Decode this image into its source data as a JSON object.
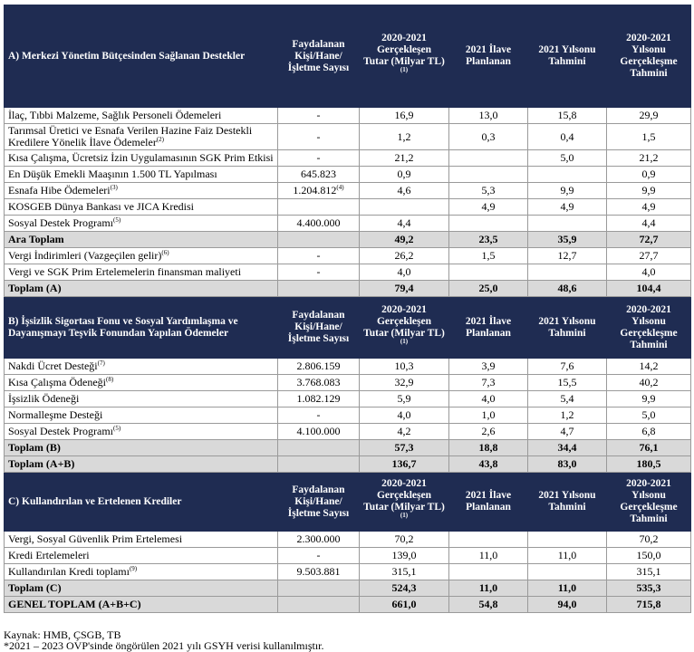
{
  "sections": [
    {
      "header": {
        "title": "A) Merkezi Yönetim Bütçesinden Sağlanan Destekler",
        "columns": [
          "Faydalanan Kişi/Hane/ İşletme Sayısı",
          "2020-2021 Gerçekleşen Tutar (Milyar TL)",
          "2021 İlave Planlanan",
          "2021 Yılsonu Tahmini",
          "2020-2021 Yılsonu Gerçekleşme Tahmini"
        ],
        "column_note": "(1)"
      },
      "rows": [
        {
          "label": "İlaç, Tıbbi Malzeme, Sağlık Personeli Ödemeleri",
          "cells": [
            "-",
            "16,9",
            "13,0",
            "15,8",
            "29,9"
          ]
        },
        {
          "label": "Tarımsal Üretici ve Esnafa Verilen Hazine Faiz Destekli Kredilere Yönelik İlave Ödemeler",
          "label_note": "(2)",
          "cells": [
            "-",
            "1,2",
            "0,3",
            "0,4",
            "1,5"
          ]
        },
        {
          "label": "Kısa Çalışma, Ücretsiz İzin Uygulamasının SGK Prim Etkisi",
          "cells": [
            "-",
            "21,2",
            null,
            "5,0",
            "21,2"
          ]
        },
        {
          "label": "En Düşük Emekli Maaşının 1.500 TL Yapılması",
          "cells": [
            "645.823",
            "0,9",
            null,
            null,
            "0,9"
          ]
        },
        {
          "label": "Esnafa Hibe Ödemeleri",
          "label_note": "(3)",
          "cells": [
            "1.204.812",
            "4,6",
            "5,3",
            "9,9",
            "9,9"
          ],
          "count_note": "(4)"
        },
        {
          "label": "KOSGEB Dünya Bankası ve JICA Kredisi",
          "cells": [
            null,
            null,
            "4,9",
            "4,9",
            "4,9"
          ]
        },
        {
          "label": "Sosyal Destek Programı",
          "label_note": "(5)",
          "cells": [
            "4.400.000",
            "4,4",
            null,
            null,
            "4,4"
          ]
        },
        {
          "label": "Ara Toplam",
          "bold": true,
          "cells": [
            null,
            "49,2",
            "23,5",
            "35,9",
            "72,7"
          ]
        },
        {
          "label": "Vergi İndirimleri (Vazgeçilen gelir)",
          "label_note": "(6)",
          "cells": [
            "-",
            "26,2",
            "1,5",
            "12,7",
            "27,7"
          ]
        },
        {
          "label": "Vergi ve SGK Prim Ertelemelerin finansman maliyeti",
          "cells": [
            "-",
            "4,0",
            null,
            null,
            "4,0"
          ]
        },
        {
          "label": "Toplam (A)",
          "bold": true,
          "cells": [
            null,
            "79,4",
            "25,0",
            "48,6",
            "104,4"
          ]
        }
      ]
    },
    {
      "header": {
        "title": "B) İşsizlik Sigortası Fonu ve Sosyal Yardımlaşma ve Dayanışmayı Teşvik Fonundan Yapılan Ödemeler",
        "columns": [
          "Faydalanan Kişi/Hane/ İşletme Sayısı",
          "2020-2021 Gerçekleşen Tutar (Milyar TL)",
          "2021 İlave Planlanan",
          "2021 Yılsonu Tahmini",
          "2020-2021 Yılsonu Gerçekleşme Tahmini"
        ],
        "column_note": "(1)"
      },
      "rows": [
        {
          "label": "Nakdi Ücret Desteği",
          "label_note": "(7)",
          "cells": [
            "2.806.159",
            "10,3",
            "3,9",
            "7,6",
            "14,2"
          ]
        },
        {
          "label": "Kısa Çalışma Ödeneği",
          "label_note": "(8)",
          "cells": [
            "3.768.083",
            "32,9",
            "7,3",
            "15,5",
            "40,2"
          ]
        },
        {
          "label": "İşsizlik Ödeneği",
          "cells": [
            "1.082.129",
            "5,9",
            "4,0",
            "5,4",
            "9,9"
          ]
        },
        {
          "label": "Normalleşme Desteği",
          "cells": [
            "-",
            "4,0",
            "1,0",
            "1,2",
            "5,0"
          ]
        },
        {
          "label": "Sosyal Destek Programı",
          "label_note": "(5)",
          "cells": [
            "4.100.000",
            "4,2",
            "2,6",
            "4,7",
            "6,8"
          ]
        },
        {
          "label": "Toplam (B)",
          "bold": true,
          "cells": [
            null,
            "57,3",
            "18,8",
            "34,4",
            "76,1"
          ]
        },
        {
          "label": "Toplam (A+B)",
          "bold": true,
          "cells": [
            null,
            "136,7",
            "43,8",
            "83,0",
            "180,5"
          ]
        }
      ]
    },
    {
      "header": {
        "title": "C) Kullandırılan ve Ertelenen Krediler",
        "columns": [
          "Faydalanan Kişi/Hane/ İşletme Sayısı",
          "2020-2021 Gerçekleşen Tutar (Milyar TL)",
          "2021 İlave Planlanan",
          "2021 Yılsonu Tahmini",
          "2020-2021 Yılsonu Gerçekleşme Tahmini"
        ],
        "column_note": "(1)"
      },
      "rows": [
        {
          "label": "Vergi, Sosyal Güvenlik Prim Ertelemesi",
          "cells": [
            "2.300.000",
            "70,2",
            null,
            null,
            "70,2"
          ]
        },
        {
          "label": "Kredi Ertelemeleri",
          "cells": [
            "-",
            "139,0",
            "11,0",
            "11,0",
            "150,0"
          ]
        },
        {
          "label": "Kullandırılan Kredi toplamı",
          "label_note": "(9)",
          "cells": [
            "9.503.881",
            "315,1",
            null,
            null,
            "315,1"
          ]
        },
        {
          "label": "Toplam (C)",
          "bold": true,
          "cells": [
            null,
            "524,3",
            "11,0",
            "11,0",
            "535,3"
          ]
        },
        {
          "label": "GENEL TOPLAM (A+B+C)",
          "bold": true,
          "cells": [
            null,
            "661,0",
            "54,8",
            "94,0",
            "715,8"
          ]
        }
      ]
    }
  ],
  "footer": [
    "Kaynak: HMB, ÇSGB, TB",
    "*2021 – 2023 OVP'sinde öngörülen 2021 yılı GSYH verisi kullanılmıştır."
  ]
}
